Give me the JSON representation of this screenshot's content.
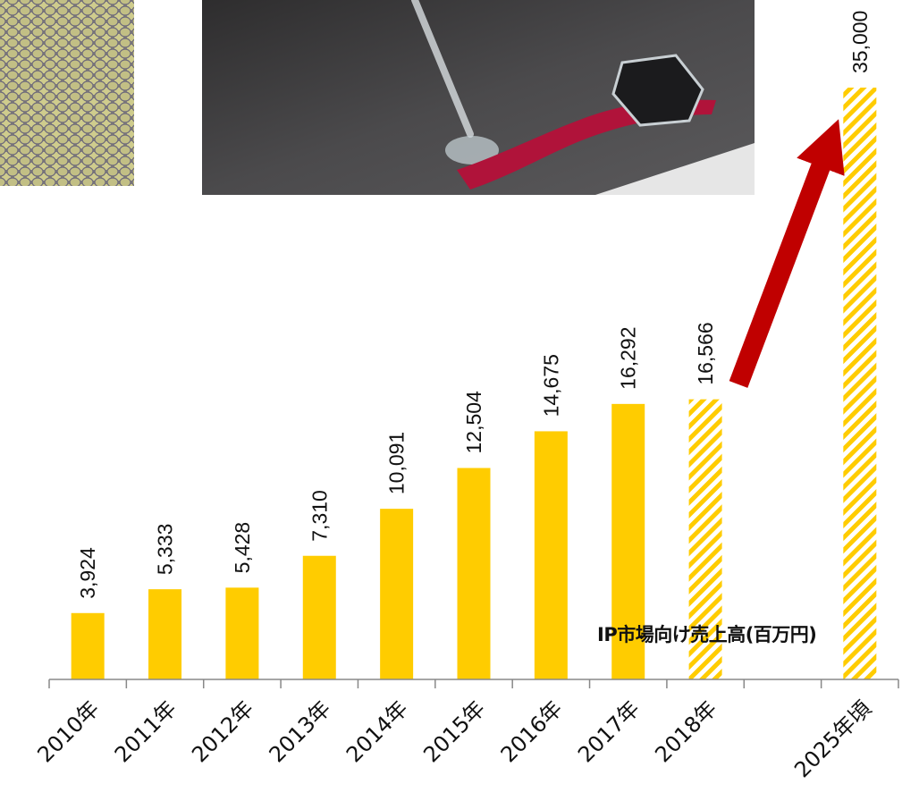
{
  "chart_data": {
    "type": "bar",
    "categories": [
      "2010年",
      "2011年",
      "2012年",
      "2013年",
      "2014年",
      "2015年",
      "2016年",
      "2017年",
      "2018年",
      "",
      "2025年頃"
    ],
    "values": [
      3924,
      5333,
      5428,
      7310,
      10091,
      12504,
      14675,
      16292,
      16566,
      null,
      35000
    ],
    "value_labels": [
      "3,924",
      "5,333",
      "5,428",
      "7,310",
      "10,091",
      "12,504",
      "14,675",
      "16,292",
      "16,566",
      "",
      "35,000"
    ],
    "hatched": [
      false,
      false,
      false,
      false,
      false,
      false,
      false,
      false,
      true,
      false,
      true
    ],
    "series_label": "IP市場向け売上高(百万円)",
    "bar_color": "#FFCC00",
    "hatch_color": "#FFCC00",
    "arrow_color": "#C00000",
    "ylim": [
      0,
      37000
    ],
    "grid": false,
    "title": "",
    "xlabel": "",
    "ylabel": ""
  },
  "images": {
    "left": "snake-skin-photo",
    "center": "glass-art-photo"
  }
}
